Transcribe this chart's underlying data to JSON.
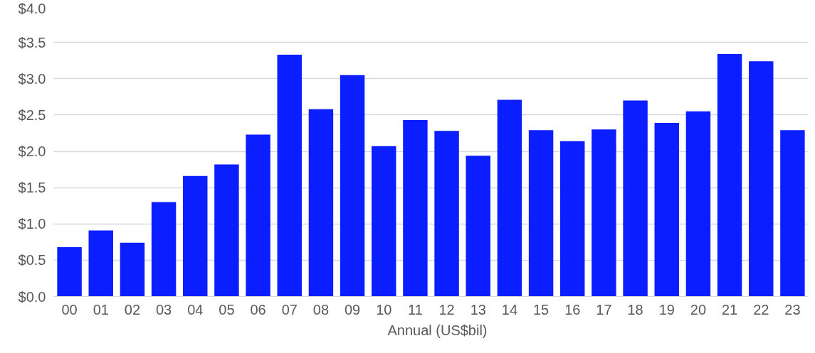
{
  "chart_data": {
    "type": "bar",
    "categories": [
      "00",
      "01",
      "02",
      "03",
      "04",
      "05",
      "06",
      "07",
      "08",
      "09",
      "10",
      "11",
      "12",
      "13",
      "14",
      "15",
      "16",
      "17",
      "18",
      "19",
      "20",
      "21",
      "22",
      "23"
    ],
    "series": [
      {
        "name": "Annual (US$bil)",
        "color": "#0a1eff",
        "values": [
          0.68,
          0.91,
          0.74,
          1.3,
          1.66,
          1.82,
          2.23,
          3.33,
          2.58,
          3.05,
          2.07,
          2.43,
          2.28,
          1.94,
          2.71,
          2.29,
          2.14,
          2.3,
          2.7,
          2.39,
          2.55,
          3.34,
          3.24,
          2.29
        ]
      }
    ],
    "ylim": [
      0,
      4
    ],
    "yticks": [
      {
        "value": 0,
        "label": "$0.0"
      },
      {
        "value": 0.5,
        "label": "$0.5"
      },
      {
        "value": 1,
        "label": "$1.0"
      },
      {
        "value": 1.5,
        "label": "$1.5"
      },
      {
        "value": 2,
        "label": "$2.0"
      },
      {
        "value": 2.5,
        "label": "$2.5"
      },
      {
        "value": 3,
        "label": "$3.0"
      },
      {
        "value": 3.5,
        "label": "$3.5"
      },
      {
        "value": 4,
        "label": "$4.0"
      }
    ],
    "grid": "y",
    "legend": "bottom"
  }
}
